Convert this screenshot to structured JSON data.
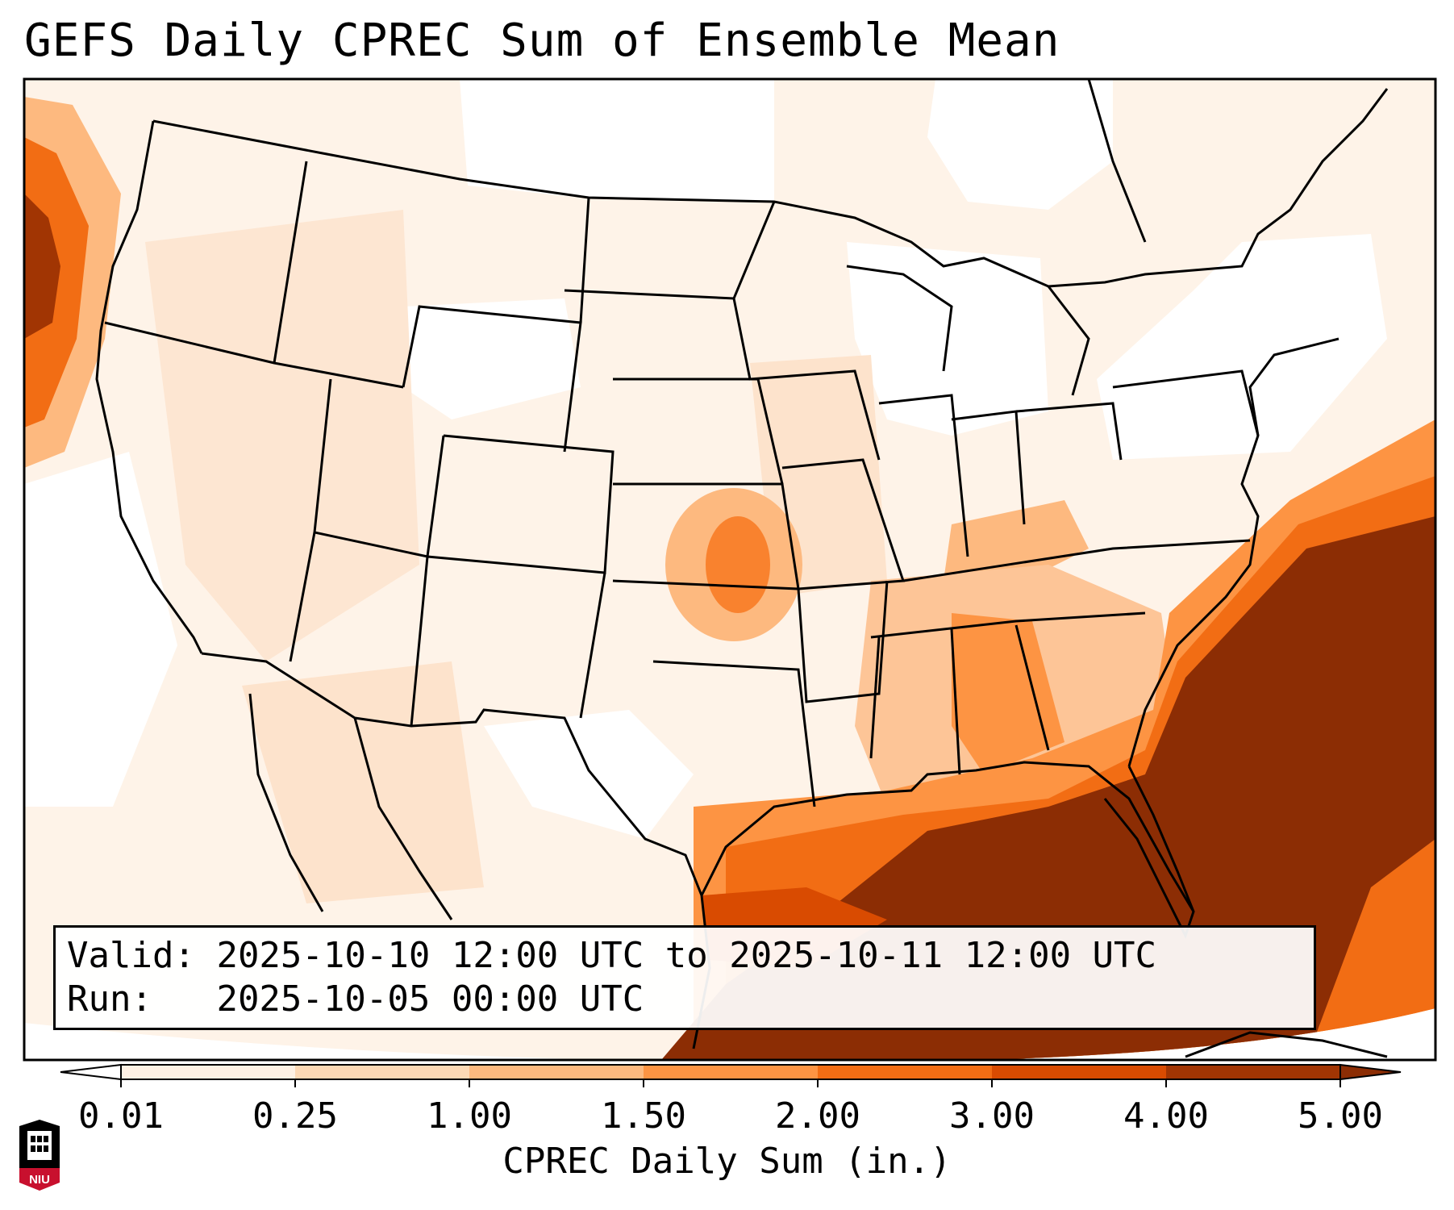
{
  "title": "GEFS Daily CPREC Sum of Ensemble Mean",
  "info": {
    "valid_label": "Valid:",
    "valid_value": "2025-10-10 12:00 UTC to 2025-10-11 12:00 UTC",
    "run_label": "Run:",
    "run_value": "2025-10-05 00:00 UTC"
  },
  "colorbar": {
    "label": "CPREC Daily Sum (in.)",
    "ticks": [
      "0.01",
      "0.25",
      "1.00",
      "1.50",
      "2.00",
      "3.00",
      "4.00",
      "5.00"
    ],
    "colors": [
      "#fef1e4",
      "#fdd9b5",
      "#fdb97f",
      "#fd9443",
      "#f26d14",
      "#d94b01",
      "#a13503",
      "#8c2d04"
    ],
    "over_color": "#8c2d04",
    "under_color": "#ffffff"
  },
  "map": {
    "domain": "CONUS",
    "ocean_color": "#fef3e8",
    "border_color": "#000000"
  },
  "logo": {
    "text": "NIU",
    "colors": [
      "#c8102e",
      "#000000"
    ]
  }
}
